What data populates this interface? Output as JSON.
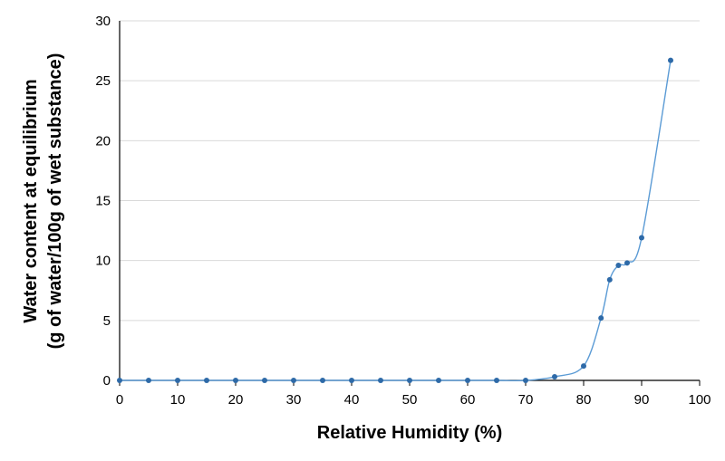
{
  "chart_data": {
    "type": "line",
    "title": "",
    "xlabel": "Relative Humidity (%)",
    "ylabel_line1": "Water content at equilibrium",
    "ylabel_line2": "(g of water/100g of wet substance)",
    "xlim": [
      0,
      100
    ],
    "ylim": [
      0,
      30
    ],
    "xticks": [
      0,
      10,
      20,
      30,
      40,
      50,
      60,
      70,
      80,
      90,
      100
    ],
    "yticks": [
      0,
      5,
      10,
      15,
      20,
      25,
      30
    ],
    "grid": "horizontal",
    "smoothed": true,
    "series": [
      {
        "color": "#5b9bd5",
        "marker_color": "#2e6aa8",
        "points": [
          [
            0,
            0
          ],
          [
            5,
            0
          ],
          [
            10,
            0
          ],
          [
            15,
            0
          ],
          [
            20,
            0
          ],
          [
            25,
            0
          ],
          [
            30,
            0
          ],
          [
            35,
            0
          ],
          [
            40,
            0
          ],
          [
            45,
            0
          ],
          [
            50,
            0
          ],
          [
            55,
            0
          ],
          [
            60,
            0
          ],
          [
            65,
            0
          ],
          [
            70,
            0
          ],
          [
            75,
            0.3
          ],
          [
            80,
            1.2
          ],
          [
            83,
            5.2
          ],
          [
            84.5,
            8.4
          ],
          [
            86,
            9.6
          ],
          [
            87.5,
            9.8
          ],
          [
            90,
            11.9
          ],
          [
            95,
            26.7
          ]
        ]
      }
    ]
  }
}
